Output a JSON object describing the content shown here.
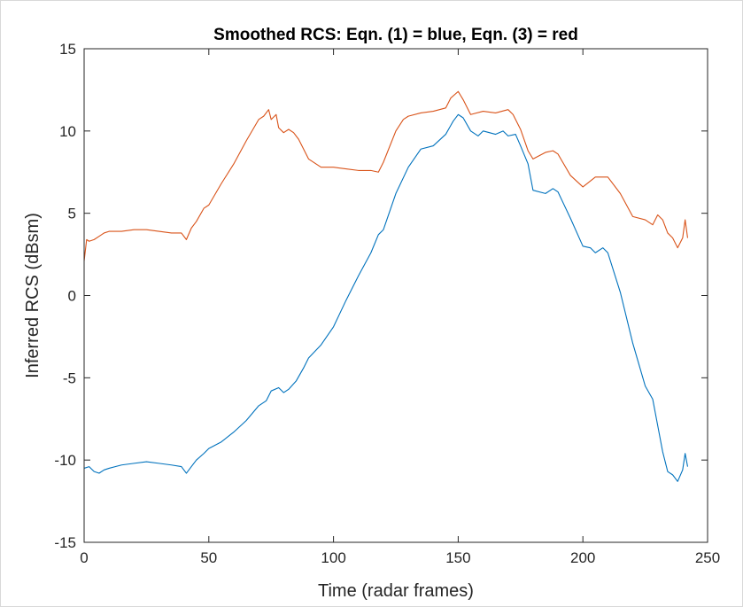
{
  "chart_data": {
    "type": "line",
    "title": "Smoothed RCS: Eqn. (1) = blue, Eqn. (3) = red",
    "xlabel": "Time (radar frames)",
    "ylabel": "Inferred RCS (dBsm)",
    "xlim": [
      0,
      250
    ],
    "ylim": [
      -15,
      15
    ],
    "xticks": [
      0,
      50,
      100,
      150,
      200,
      250
    ],
    "yticks": [
      -15,
      -10,
      -5,
      0,
      5,
      10,
      15
    ],
    "xtick_labels": [
      "0",
      "50",
      "100",
      "150",
      "200",
      "250"
    ],
    "ytick_labels": [
      "-15",
      "-10",
      "-5",
      "0",
      "5",
      "10",
      "15"
    ],
    "grid": false,
    "legend": "none",
    "series": [
      {
        "color": "#0072bd",
        "x": [
          0,
          2,
          4,
          6,
          8,
          10,
          15,
          20,
          25,
          30,
          35,
          39,
          41,
          43,
          45,
          48,
          50,
          55,
          60,
          65,
          70,
          73,
          75,
          78,
          80,
          82,
          85,
          88,
          90,
          95,
          100,
          105,
          110,
          115,
          118,
          120,
          125,
          130,
          135,
          140,
          145,
          148,
          150,
          152,
          155,
          158,
          160,
          165,
          168,
          170,
          173,
          175,
          178,
          180,
          185,
          188,
          190,
          195,
          200,
          203,
          205,
          208,
          210,
          215,
          220,
          225,
          228,
          230,
          232,
          234,
          236,
          238,
          240,
          241,
          242
        ],
        "y": [
          -10.5,
          -10.4,
          -10.7,
          -10.8,
          -10.6,
          -10.5,
          -10.3,
          -10.2,
          -10.1,
          -10.2,
          -10.3,
          -10.4,
          -10.8,
          -10.4,
          -10.0,
          -9.6,
          -9.3,
          -8.9,
          -8.3,
          -7.6,
          -6.7,
          -6.4,
          -5.8,
          -5.6,
          -5.9,
          -5.7,
          -5.2,
          -4.4,
          -3.8,
          -3.0,
          -1.9,
          -0.3,
          1.2,
          2.6,
          3.7,
          4.0,
          6.2,
          7.8,
          8.9,
          9.1,
          9.8,
          10.6,
          11.0,
          10.8,
          10.0,
          9.7,
          10.0,
          9.8,
          10.0,
          9.7,
          9.8,
          9.1,
          8.0,
          6.4,
          6.2,
          6.5,
          6.3,
          4.7,
          3.0,
          2.9,
          2.6,
          2.9,
          2.6,
          0.2,
          -2.9,
          -5.5,
          -6.3,
          -7.9,
          -9.5,
          -10.7,
          -10.9,
          -11.3,
          -10.6,
          -9.6,
          -10.4
        ]
      },
      {
        "color": "#d95319",
        "x": [
          0,
          1,
          2,
          4,
          6,
          8,
          10,
          15,
          20,
          25,
          30,
          35,
          39,
          41,
          43,
          45,
          48,
          50,
          55,
          60,
          65,
          70,
          72,
          74,
          75,
          77,
          78,
          80,
          82,
          84,
          86,
          88,
          90,
          95,
          100,
          105,
          110,
          115,
          118,
          120,
          125,
          128,
          130,
          135,
          140,
          145,
          147,
          150,
          152,
          155,
          160,
          165,
          170,
          172,
          175,
          178,
          180,
          185,
          188,
          190,
          195,
          200,
          205,
          210,
          215,
          220,
          225,
          228,
          230,
          232,
          234,
          236,
          238,
          240,
          241,
          242
        ],
        "y": [
          2.1,
          3.4,
          3.3,
          3.4,
          3.6,
          3.8,
          3.9,
          3.9,
          4.0,
          4.0,
          3.9,
          3.8,
          3.8,
          3.4,
          4.1,
          4.5,
          5.3,
          5.5,
          6.8,
          8.0,
          9.4,
          10.7,
          10.9,
          11.3,
          10.7,
          11.0,
          10.2,
          9.9,
          10.1,
          9.9,
          9.5,
          8.9,
          8.3,
          7.8,
          7.8,
          7.7,
          7.6,
          7.6,
          7.5,
          8.1,
          10.0,
          10.7,
          10.9,
          11.1,
          11.2,
          11.4,
          12.0,
          12.4,
          11.9,
          11.0,
          11.2,
          11.1,
          11.3,
          11.0,
          10.1,
          8.8,
          8.3,
          8.7,
          8.8,
          8.6,
          7.3,
          6.6,
          7.2,
          7.2,
          6.2,
          4.8,
          4.6,
          4.3,
          4.9,
          4.6,
          3.8,
          3.5,
          2.9,
          3.5,
          4.6,
          3.5
        ]
      }
    ]
  }
}
